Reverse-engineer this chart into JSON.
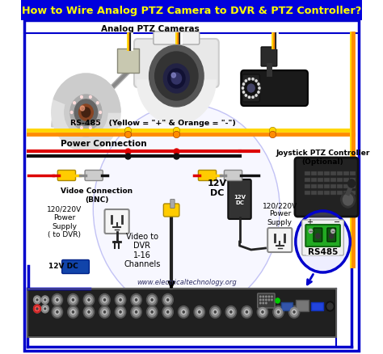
{
  "title": "How to Wire Analog PTZ Camera to DVR & PTZ Controller?",
  "title_bg": "#0000DD",
  "title_color": "#FFFF00",
  "subtitle": "Analog PTZ Cameras",
  "content_bg": "#FFFFFF",
  "outer_border_color": "#0000CC",
  "rs485_text": "RS-485   (Yellow = \"+\" & Orange = \"-\")",
  "power_conn_text": "Power Connection",
  "video_conn_text": "Vidoe Connection\n(BNC)",
  "power_supply_text": "120/220V\nPower\nSupply\n( to DVR)",
  "12vdc_text": "12V DC",
  "video_dvr_text": "Video to\nDVR\n1-16\nChannels",
  "power_supply2_text": "12V\nDC",
  "power_supply3_text": "120/220V\nPower\nSupply",
  "joystick_text": "Joystick PTZ Controller\n(Optional)",
  "rs485_label": "RS485",
  "website": "www.electricaltechnology.org",
  "yellow_color": "#FFD700",
  "orange_color": "#FF8C00",
  "blue_line_color": "#0000CC",
  "black_color": "#000000",
  "red_color": "#CC0000",
  "gray_color": "#888888",
  "white_color": "#FFFFFF",
  "green_color": "#22AA22",
  "light_gray": "#DDDDDD",
  "dark_gray": "#444444",
  "cam_bg": "#E8E8E8"
}
